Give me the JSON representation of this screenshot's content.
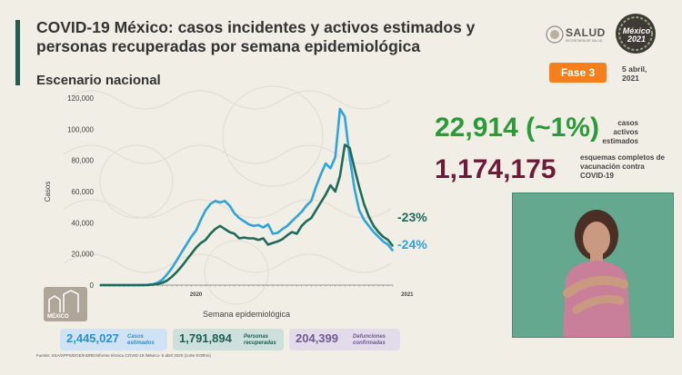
{
  "header": {
    "title": "COVID-19 México: casos incidentes y activos estimados y personas recuperadas por semana epidemiológica",
    "subtitle": "Escenario nacional",
    "logo_text": "SALUD",
    "logo_subtext": "SECRETARÍA DE SALUD",
    "seal_text": "México 2021",
    "badge": "Fase 3",
    "date_line1": "5 abril,",
    "date_line2": "2021"
  },
  "kpis": {
    "active_value": "22,914 (~1%)",
    "active_label": "casos activos estimados",
    "vaccination_value": "1,174,175",
    "vaccination_label": "esquemas completos de vacunación contra COVID-19"
  },
  "summary": [
    {
      "value": "2,445,027",
      "label": "Casos estimados",
      "bg": "#cfe3f5",
      "fg": "#2e8fd0"
    },
    {
      "value": "1,791,894",
      "label": "Personas recuperadas",
      "bg": "#cde0db",
      "fg": "#1f5f53"
    },
    {
      "value": "204,399",
      "label": "Defunciones confirmadas",
      "bg": "#e2dbea",
      "fg": "#6f5a92"
    }
  ],
  "source": "Fuente: SSA/SPPS/DGE/InDRE/Informe técnico.COVID-19 /México- 5 abril 2020 (corte 9:00hrs)",
  "footer_logo_text": "MÉXICO",
  "colors": {
    "brand_green": "#235b4e",
    "incident_series": "#2ea3dd",
    "active_series": "#1e6b5a",
    "badge": "#f47f1b",
    "kpi_active": "#2a9b39",
    "kpi_vaccination": "#6e1b3a"
  },
  "chart_data": {
    "type": "line",
    "title": "",
    "xlabel": "Semana epidemiológica",
    "ylabel": "Casos",
    "ylim": [
      0,
      120000
    ],
    "yticks": [
      "0",
      "20,000",
      "40,000",
      "60,000",
      "80,000",
      "100,000",
      "120,000"
    ],
    "xticks": [
      {
        "label": "2020",
        "week": 20
      },
      {
        "label": "2021",
        "week": 64
      }
    ],
    "grid": false,
    "series": [
      {
        "key": "incident",
        "color": "#2ea3dd",
        "annotation": "-24%",
        "values": [
          0,
          0,
          0,
          0,
          0,
          0,
          0,
          0,
          0,
          50,
          200,
          600,
          1500,
          3500,
          7000,
          11000,
          16000,
          21000,
          26000,
          31000,
          35000,
          42000,
          48000,
          52000,
          54000,
          53000,
          54000,
          51000,
          46000,
          43000,
          41000,
          39000,
          38000,
          38500,
          37000,
          39000,
          33000,
          33500,
          36000,
          38000,
          41000,
          44000,
          47000,
          51000,
          54000,
          63000,
          71000,
          78000,
          75000,
          82000,
          113000,
          108000,
          82000,
          62000,
          48000,
          42000,
          38000,
          34000,
          31000,
          28000,
          26000,
          22000
        ]
      },
      {
        "key": "active",
        "color": "#1e6b5a",
        "annotation": "-23%",
        "values": [
          0,
          0,
          0,
          0,
          0,
          0,
          0,
          0,
          0,
          0,
          100,
          300,
          700,
          1500,
          3000,
          5500,
          8500,
          12000,
          16000,
          20000,
          24000,
          27000,
          29000,
          33000,
          36000,
          38000,
          36000,
          34000,
          33000,
          30000,
          30500,
          30000,
          30000,
          29000,
          30000,
          26000,
          27000,
          28000,
          29500,
          32000,
          34000,
          33000,
          38000,
          41000,
          43000,
          48000,
          53000,
          58000,
          64000,
          60000,
          70000,
          90000,
          88000,
          75000,
          63000,
          52000,
          44000,
          38000,
          34000,
          31000,
          29000,
          25000
        ]
      }
    ]
  }
}
